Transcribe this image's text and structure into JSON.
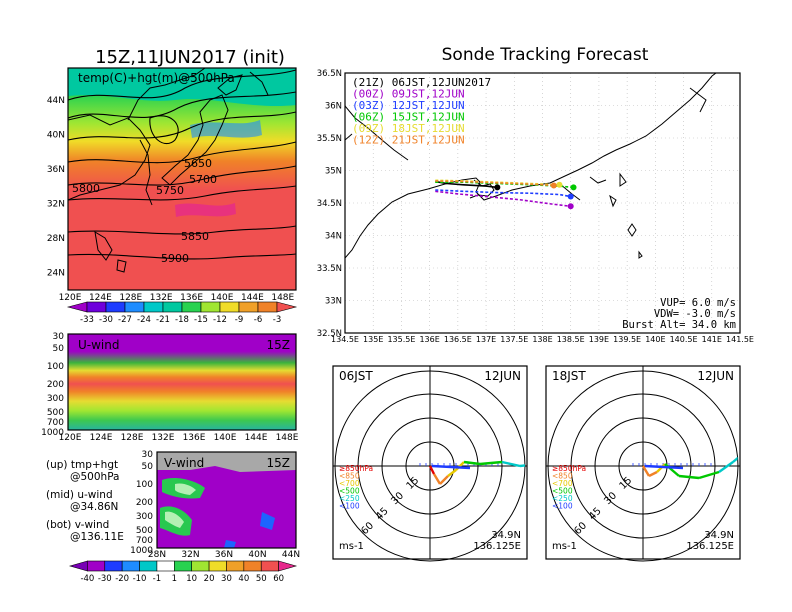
{
  "main_title": "15Z,11JUN2017 (init)",
  "tracking": {
    "title": "Sonde Tracking Forecast",
    "legend": [
      {
        "label": "(21Z)  06JST,12JUN2017",
        "color": "#000000"
      },
      {
        "label": "(00Z)  09JST,12JUN",
        "color": "#a000c8"
      },
      {
        "label": "(03Z)  12JST,12JUN",
        "color": "#1e3cff"
      },
      {
        "label": "(06Z)  15JST,12JUN",
        "color": "#00c800"
      },
      {
        "label": "(09Z)  18JST,12JUN",
        "color": "#e6dc32"
      },
      {
        "label": "(12Z)  21JST,12JUN",
        "color": "#f08228"
      }
    ],
    "vup": "VUP=  6.0  m/s",
    "vdw": "VDW= -3.0  m/s",
    "burst": "Burst Alt=  34.0  km",
    "x_ticks": [
      "134.5E",
      "135E",
      "135.5E",
      "136E",
      "136.5E",
      "137E",
      "137.5E",
      "138E",
      "138.5E",
      "139E",
      "139.5E",
      "140E",
      "140.5E",
      "141E",
      "141.5E"
    ],
    "y_ticks": [
      "36.5N",
      "36N",
      "35.5N",
      "35N",
      "34.5N",
      "34N",
      "33.5N",
      "33N",
      "32.5N"
    ]
  },
  "map500": {
    "label": "temp(C)+hgt(m)@500hPa",
    "contour_labels": [
      "5650",
      "5700",
      "5750",
      "5800",
      "5850",
      "5900"
    ],
    "x_ticks": [
      "120E",
      "124E",
      "128E",
      "132E",
      "136E",
      "140E",
      "144E",
      "148E"
    ],
    "y_ticks": [
      "44N",
      "40N",
      "36N",
      "32N",
      "28N",
      "24N"
    ],
    "colorbar": [
      "-33",
      "-30",
      "-27",
      "-24",
      "-21",
      "-18",
      "-15",
      "-12",
      "-9",
      "-6",
      "-3"
    ]
  },
  "uwind": {
    "label": "U-wind",
    "time": "15Z",
    "y_ticks": [
      "30",
      "50",
      "100",
      "200",
      "300",
      "500",
      "700",
      "1000"
    ],
    "x_ticks": [
      "120E",
      "124E",
      "128E",
      "132E",
      "136E",
      "140E",
      "144E",
      "148E"
    ]
  },
  "vwind": {
    "label": "V-wind",
    "time": "15Z",
    "y_ticks": [
      "30",
      "50",
      "100",
      "200",
      "300",
      "500",
      "700",
      "1000"
    ],
    "x_ticks": [
      "28N",
      "32N",
      "36N",
      "40N",
      "44N"
    ],
    "colorbar": [
      "-40",
      "-30",
      "-20",
      "-10",
      "-1",
      "1",
      "10",
      "20",
      "30",
      "40",
      "50",
      "60"
    ]
  },
  "notes": [
    {
      "a": "(up) tmp+hgt",
      "b": "@500hPa"
    },
    {
      "a": "(mid) u-wind",
      "b": "@34.86N"
    },
    {
      "a": "(bot) v-wind",
      "b": "@136.11E"
    }
  ],
  "hodographs": [
    {
      "time": "06JST",
      "date": "12JUN",
      "lat": "34.9N",
      "lon": "136.125E",
      "unit": "ms-1"
    },
    {
      "time": "18JST",
      "date": "12JUN",
      "lat": "34.9N",
      "lon": "136.125E",
      "unit": "ms-1"
    }
  ],
  "hodo_ring_labels": [
    "15",
    "30",
    "45",
    "60"
  ],
  "hodo_pressure_legend": [
    {
      "label": "≥850hPa",
      "color": "#e60000"
    },
    {
      "label": "<850",
      "color": "#f08228"
    },
    {
      "label": "<700",
      "color": "#e6c800"
    },
    {
      "label": "<500",
      "color": "#00c800"
    },
    {
      "label": "<250",
      "color": "#00c8c8"
    },
    {
      "label": "<100",
      "color": "#1e3cff"
    }
  ],
  "chart_data": [
    {
      "type": "line",
      "title": "Sonde Tracking Forecast",
      "xlim": [
        134.5,
        141.5
      ],
      "ylim": [
        32.5,
        36.5
      ],
      "series": [
        {
          "name": "(21Z)  06JST,12JUN2017",
          "x": [
            136.1,
            136.3,
            136.6,
            137.0,
            137.2
          ],
          "y": [
            34.83,
            34.8,
            34.78,
            34.76,
            34.74
          ]
        },
        {
          "name": "(00Z)  09JST,12JUN",
          "x": [
            136.1,
            136.5,
            137.0,
            137.6,
            138.2,
            138.5
          ],
          "y": [
            34.68,
            34.64,
            34.6,
            34.55,
            34.48,
            34.45
          ]
        },
        {
          "name": "(03Z)  12JST,12JUN",
          "x": [
            136.1,
            136.6,
            137.2,
            137.8,
            138.3,
            138.5
          ],
          "y": [
            34.7,
            34.68,
            34.66,
            34.65,
            34.63,
            34.6
          ]
        },
        {
          "name": "(06Z)  15JST,12JUN",
          "x": [
            136.1,
            136.6,
            137.2,
            137.8,
            138.3,
            138.55
          ],
          "y": [
            34.82,
            34.82,
            34.8,
            34.78,
            34.76,
            34.74
          ]
        },
        {
          "name": "(09Z)  18JST,12JUN",
          "x": [
            136.1,
            136.6,
            137.2,
            137.8,
            138.3
          ],
          "y": [
            34.85,
            34.84,
            34.82,
            34.8,
            34.78
          ]
        },
        {
          "name": "(12Z)  21JST,12JUN",
          "x": [
            136.1,
            136.6,
            137.2,
            137.8,
            138.2
          ],
          "y": [
            34.84,
            34.83,
            34.81,
            34.79,
            34.77
          ]
        }
      ]
    }
  ]
}
